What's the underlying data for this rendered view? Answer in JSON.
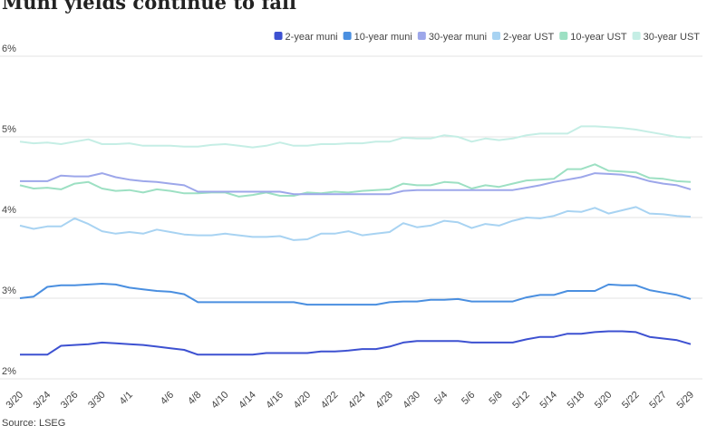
{
  "chart_data": {
    "type": "line",
    "title": "Muni yields continue to fall",
    "source": "Source: LSEG",
    "categories": [
      "3/20",
      null,
      "3/24",
      null,
      "3/26",
      null,
      "3/30",
      null,
      "4/1",
      null,
      null,
      "4/6",
      null,
      "4/8",
      null,
      "4/10",
      null,
      "4/14",
      null,
      "4/16",
      null,
      "4/20",
      null,
      "4/22",
      null,
      "4/24",
      null,
      "4/28",
      null,
      "4/30",
      null,
      "5/4",
      null,
      "5/6",
      null,
      "5/8",
      null,
      "5/12",
      null,
      "5/14",
      null,
      "5/18",
      null,
      "5/20",
      null,
      "5/22",
      null,
      "5/27",
      null,
      "5/29"
    ],
    "ylim": [
      2,
      6
    ],
    "yticks": [
      {
        "value": 2,
        "label": "2%"
      },
      {
        "value": 3,
        "label": "3%"
      },
      {
        "value": 4,
        "label": "4%"
      },
      {
        "value": 5,
        "label": "5%"
      },
      {
        "value": 6,
        "label": "6%"
      }
    ],
    "grid": true,
    "legend": "top-right",
    "series": [
      {
        "name": "2-year muni",
        "color": "#3d51d1",
        "values": [
          2.3,
          2.3,
          2.3,
          2.41,
          2.42,
          2.43,
          2.45,
          2.44,
          2.43,
          2.42,
          2.4,
          2.38,
          2.36,
          2.3,
          2.3,
          2.3,
          2.3,
          2.3,
          2.32,
          2.32,
          2.32,
          2.32,
          2.34,
          2.34,
          2.35,
          2.37,
          2.37,
          2.4,
          2.45,
          2.47,
          2.47,
          2.47,
          2.47,
          2.45,
          2.45,
          2.45,
          2.45,
          2.49,
          2.52,
          2.52,
          2.56,
          2.56,
          2.58,
          2.59,
          2.59,
          2.58,
          2.52,
          2.5,
          2.48,
          2.43
        ]
      },
      {
        "name": "10-year muni",
        "color": "#4a8fe0",
        "values": [
          3.0,
          3.02,
          3.14,
          3.16,
          3.16,
          3.17,
          3.18,
          3.17,
          3.13,
          3.11,
          3.09,
          3.08,
          3.05,
          2.95,
          2.95,
          2.95,
          2.95,
          2.95,
          2.95,
          2.95,
          2.95,
          2.92,
          2.92,
          2.92,
          2.92,
          2.92,
          2.92,
          2.95,
          2.96,
          2.96,
          2.98,
          2.98,
          2.99,
          2.96,
          2.96,
          2.96,
          2.96,
          3.01,
          3.04,
          3.04,
          3.09,
          3.09,
          3.09,
          3.17,
          3.16,
          3.16,
          3.1,
          3.07,
          3.04,
          2.99
        ]
      },
      {
        "name": "30-year muni",
        "color": "#9da7ea",
        "values": [
          4.45,
          4.45,
          4.45,
          4.52,
          4.51,
          4.51,
          4.55,
          4.5,
          4.47,
          4.45,
          4.44,
          4.42,
          4.4,
          4.32,
          4.32,
          4.32,
          4.32,
          4.32,
          4.32,
          4.32,
          4.29,
          4.29,
          4.29,
          4.29,
          4.29,
          4.29,
          4.29,
          4.29,
          4.33,
          4.34,
          4.34,
          4.34,
          4.34,
          4.34,
          4.34,
          4.34,
          4.34,
          4.37,
          4.4,
          4.44,
          4.47,
          4.5,
          4.55,
          4.54,
          4.53,
          4.5,
          4.45,
          4.42,
          4.4,
          4.35
        ]
      },
      {
        "name": "2-year UST",
        "color": "#a8d3f2",
        "values": [
          3.9,
          3.86,
          3.89,
          3.89,
          3.99,
          3.92,
          3.83,
          3.8,
          3.82,
          3.8,
          3.85,
          3.82,
          3.79,
          3.78,
          3.78,
          3.8,
          3.78,
          3.76,
          3.76,
          3.77,
          3.72,
          3.73,
          3.8,
          3.8,
          3.83,
          3.78,
          3.8,
          3.82,
          3.93,
          3.88,
          3.9,
          3.96,
          3.94,
          3.87,
          3.92,
          3.9,
          3.96,
          4.0,
          3.99,
          4.02,
          4.08,
          4.07,
          4.12,
          4.05,
          4.09,
          4.13,
          4.05,
          4.04,
          4.02,
          4.01
        ]
      },
      {
        "name": "10-year UST",
        "color": "#9de0c3",
        "values": [
          4.4,
          4.36,
          4.37,
          4.35,
          4.42,
          4.44,
          4.36,
          4.33,
          4.34,
          4.31,
          4.35,
          4.33,
          4.3,
          4.3,
          4.31,
          4.31,
          4.26,
          4.28,
          4.31,
          4.27,
          4.27,
          4.31,
          4.3,
          4.32,
          4.31,
          4.33,
          4.34,
          4.35,
          4.42,
          4.4,
          4.4,
          4.44,
          4.43,
          4.36,
          4.4,
          4.38,
          4.42,
          4.46,
          4.47,
          4.48,
          4.6,
          4.6,
          4.66,
          4.58,
          4.57,
          4.56,
          4.49,
          4.48,
          4.45,
          4.44
        ]
      },
      {
        "name": "30-year UST",
        "color": "#c5eee5",
        "values": [
          4.94,
          4.92,
          4.93,
          4.91,
          4.94,
          4.97,
          4.91,
          4.91,
          4.92,
          4.89,
          4.89,
          4.89,
          4.88,
          4.88,
          4.9,
          4.91,
          4.89,
          4.87,
          4.89,
          4.93,
          4.89,
          4.89,
          4.91,
          4.91,
          4.92,
          4.92,
          4.94,
          4.94,
          4.99,
          4.98,
          4.98,
          5.02,
          5.0,
          4.94,
          4.98,
          4.96,
          4.98,
          5.02,
          5.04,
          5.04,
          5.04,
          5.13,
          5.13,
          5.12,
          5.11,
          5.09,
          5.06,
          5.03,
          5.0,
          4.99
        ]
      }
    ]
  }
}
